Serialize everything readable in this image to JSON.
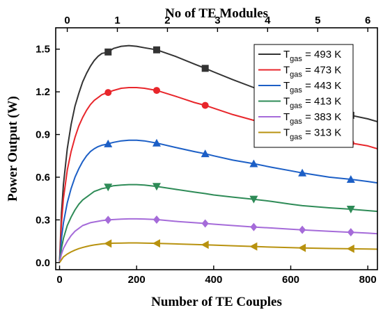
{
  "chart_data": {
    "type": "line",
    "title": "",
    "xlabel": "Number of TE Couples",
    "x2label": "No of TE Modules",
    "ylabel": "Power Output (W)",
    "xlim": [
      -10,
      825
    ],
    "ylim": [
      -0.05,
      1.65
    ],
    "xticks": [
      0,
      200,
      400,
      600,
      800
    ],
    "yticks": [
      0.0,
      0.3,
      0.6,
      0.9,
      1.2,
      1.5
    ],
    "ytick_labels": [
      "0.0",
      "0.3",
      "0.6",
      "0.9",
      "1.2",
      "1.5"
    ],
    "x2ticks": [
      {
        "label": "0",
        "x": 20
      },
      {
        "label": "1",
        "x": 150
      },
      {
        "label": "2",
        "x": 280
      },
      {
        "label": "3",
        "x": 410
      },
      {
        "label": "4",
        "x": 540
      },
      {
        "label": "5",
        "x": 670
      },
      {
        "label": "6",
        "x": 800
      }
    ],
    "x": [
      0,
      5,
      10,
      20,
      30,
      40,
      50,
      60,
      70,
      80,
      90,
      100,
      110,
      120,
      126,
      140,
      160,
      180,
      200,
      220,
      252,
      300,
      350,
      378,
      400,
      450,
      504,
      550,
      600,
      630,
      700,
      756,
      800,
      825
    ],
    "legend_position": "top-right",
    "series": [
      {
        "name": "T_gas = 493 K",
        "name_main": "T",
        "name_sub": "gas",
        "name_rest": " = 493 K",
        "color": "#333333",
        "marker": "square",
        "markers_x": [
          126,
          252,
          378,
          756
        ],
        "values": [
          0.0,
          0.35,
          0.55,
          0.8,
          0.97,
          1.1,
          1.19,
          1.27,
          1.33,
          1.38,
          1.42,
          1.45,
          1.47,
          1.475,
          1.48,
          1.505,
          1.52,
          1.525,
          1.52,
          1.51,
          1.495,
          1.45,
          1.395,
          1.365,
          1.34,
          1.285,
          1.23,
          1.18,
          1.13,
          1.1,
          1.05,
          1.035,
          1.01,
          0.99
        ]
      },
      {
        "name": "T_gas = 473 K",
        "name_main": "T",
        "name_sub": "gas",
        "name_rest": " = 473 K",
        "color": "#e8262b",
        "marker": "circle",
        "markers_x": [
          126,
          252,
          378,
          756
        ],
        "values": [
          0.0,
          0.28,
          0.45,
          0.65,
          0.78,
          0.88,
          0.96,
          1.02,
          1.07,
          1.11,
          1.14,
          1.16,
          1.18,
          1.19,
          1.195,
          1.21,
          1.225,
          1.23,
          1.23,
          1.225,
          1.21,
          1.17,
          1.125,
          1.105,
          1.085,
          1.04,
          1.0,
          0.965,
          0.93,
          0.905,
          0.865,
          0.84,
          0.82,
          0.8
        ]
      },
      {
        "name": "T_gas = 443 K",
        "name_main": "T",
        "name_sub": "gas",
        "name_rest": " = 443 K",
        "color": "#1c5fc6",
        "marker": "triangle-up",
        "markers_x": [
          126,
          252,
          378,
          504,
          630,
          756
        ],
        "values": [
          0.0,
          0.17,
          0.28,
          0.42,
          0.52,
          0.6,
          0.66,
          0.71,
          0.75,
          0.78,
          0.8,
          0.815,
          0.825,
          0.83,
          0.835,
          0.845,
          0.855,
          0.86,
          0.86,
          0.855,
          0.84,
          0.81,
          0.78,
          0.765,
          0.75,
          0.72,
          0.695,
          0.67,
          0.645,
          0.63,
          0.6,
          0.585,
          0.57,
          0.56
        ]
      },
      {
        "name": "T_gas = 413 K",
        "name_main": "T",
        "name_sub": "gas",
        "name_rest": " = 413 K",
        "color": "#2e8b57",
        "marker": "triangle-down",
        "markers_x": [
          126,
          252,
          504,
          756
        ],
        "values": [
          0.0,
          0.1,
          0.17,
          0.26,
          0.32,
          0.37,
          0.41,
          0.44,
          0.46,
          0.48,
          0.5,
          0.51,
          0.52,
          0.525,
          0.53,
          0.54,
          0.545,
          0.548,
          0.548,
          0.545,
          0.535,
          0.515,
          0.495,
          0.485,
          0.475,
          0.46,
          0.445,
          0.43,
          0.41,
          0.4,
          0.385,
          0.375,
          0.365,
          0.36
        ]
      },
      {
        "name": "T_gas = 383 K",
        "name_main": "T",
        "name_sub": "gas",
        "name_rest": " = 383 K",
        "color": "#a56bd9",
        "marker": "diamond",
        "markers_x": [
          126,
          252,
          378,
          504,
          630,
          756
        ],
        "values": [
          0.0,
          0.06,
          0.1,
          0.15,
          0.19,
          0.22,
          0.24,
          0.26,
          0.27,
          0.28,
          0.285,
          0.29,
          0.295,
          0.298,
          0.3,
          0.302,
          0.305,
          0.307,
          0.307,
          0.306,
          0.302,
          0.29,
          0.28,
          0.275,
          0.27,
          0.26,
          0.25,
          0.243,
          0.235,
          0.23,
          0.22,
          0.213,
          0.207,
          0.203
        ]
      },
      {
        "name": "T_gas = 313 K",
        "name_main": "T",
        "name_sub": "gas",
        "name_rest": " = 313 K",
        "color": "#b8920f",
        "marker": "triangle-left",
        "markers_x": [
          126,
          252,
          378,
          504,
          630,
          756
        ],
        "values": [
          0.0,
          0.02,
          0.04,
          0.06,
          0.075,
          0.088,
          0.098,
          0.106,
          0.113,
          0.119,
          0.124,
          0.128,
          0.131,
          0.133,
          0.134,
          0.136,
          0.137,
          0.138,
          0.138,
          0.137,
          0.135,
          0.131,
          0.127,
          0.125,
          0.123,
          0.118,
          0.113,
          0.109,
          0.105,
          0.103,
          0.099,
          0.097,
          0.095,
          0.094
        ]
      }
    ]
  }
}
